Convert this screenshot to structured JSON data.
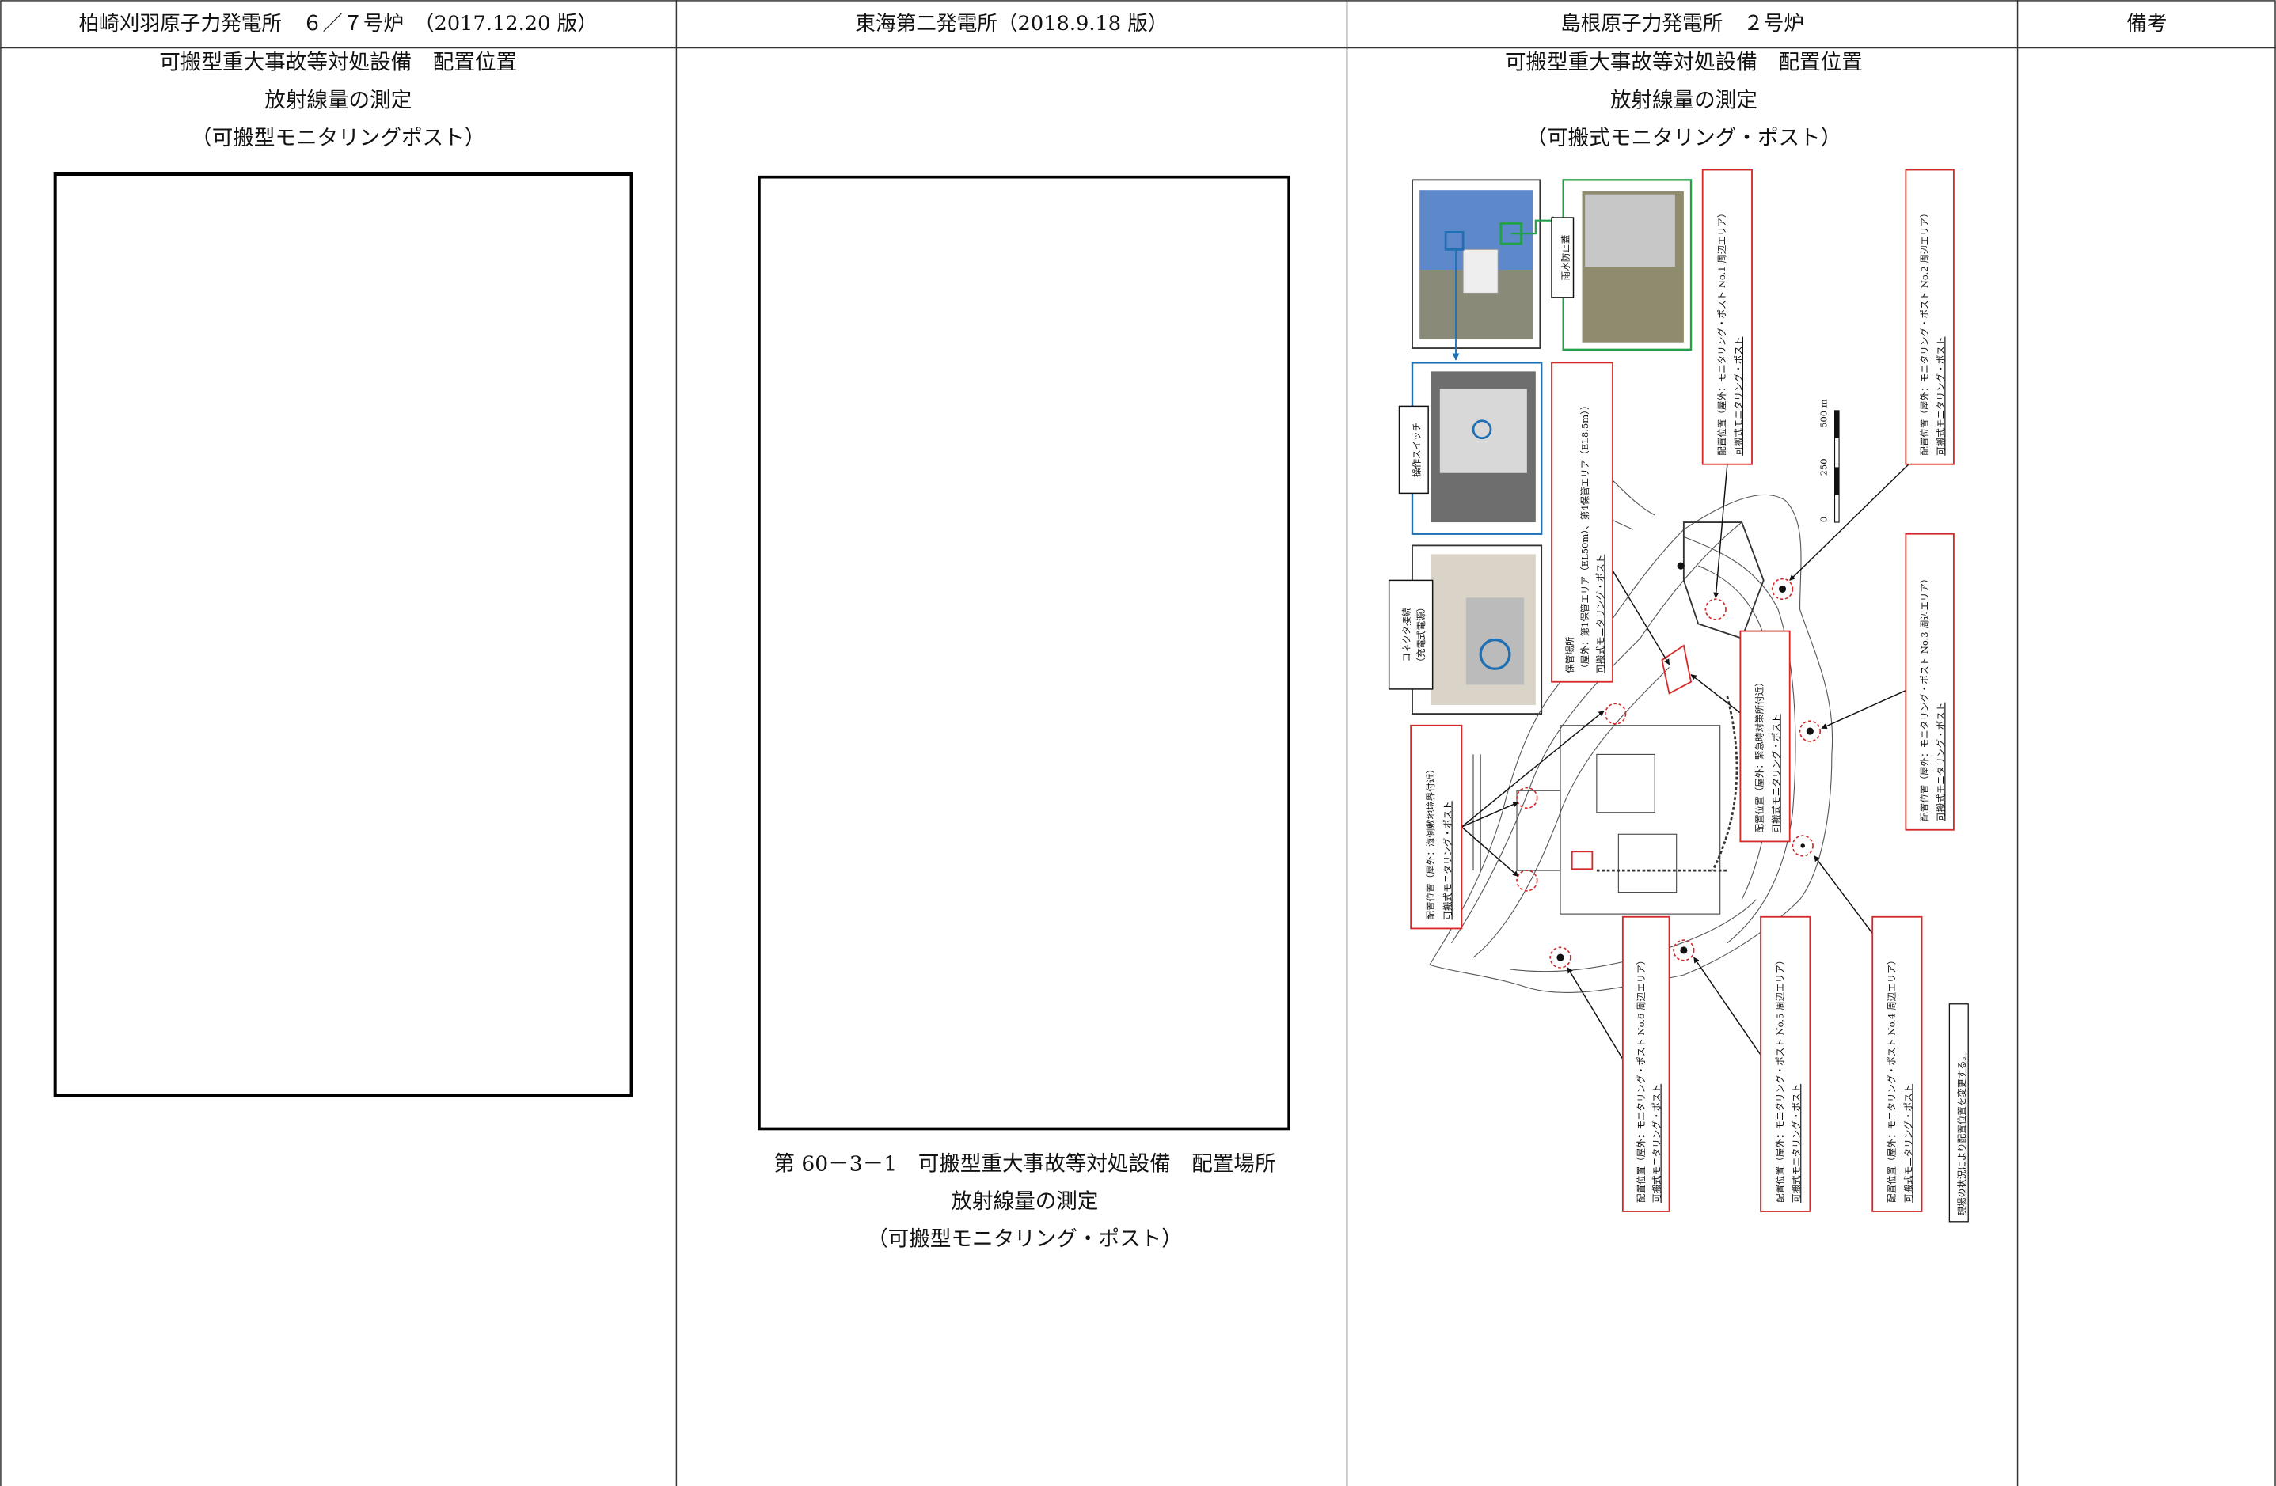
{
  "header": [
    "柏崎刈羽原子力発電所　６／７号炉　（2017.12.20 版）",
    "東海第二発電所（2018.9.18 版）",
    "島根原子力発電所　２号炉",
    "備考"
  ],
  "kashiwazaki": {
    "heading": [
      "可搬型重大事故等対処設備　配置位置",
      "放射線量の測定",
      "（可搬型モニタリングポスト）"
    ]
  },
  "tokai": {
    "caption": [
      "第 60－3－1　可搬型重大事故等対処設備　配置場所",
      "放射線量の測定",
      "（可搬型モニタリング・ポスト）"
    ]
  },
  "shimane": {
    "heading": [
      "可搬型重大事故等対処設備　配置位置",
      "放射線量の測定",
      "（可搬式モニタリング・ポスト）"
    ],
    "figure": {
      "photo_labels": [
        [
          "雨水防止蓋"
        ],
        [
          "操作スイッチ"
        ],
        [
          "コネクタ接続",
          "（充電式電源）"
        ]
      ],
      "callouts": [
        [
          "配置位置（屋外：モニタリング・ポスト No.1 周辺エリア）",
          "可搬式モニタリング・ポスト"
        ],
        [
          "配置位置（屋外：モニタリング・ポスト No.2 周辺エリア）",
          "可搬式モニタリング・ポスト"
        ],
        [
          "保管場所",
          "（屋外：第1保管エリア（EL50m）、第4保管エリア（EL8.5m））",
          "可搬式モニタリング・ポスト"
        ],
        [
          "配置位置（屋外：緊急時対策所付近）",
          "可搬式モニタリング・ポスト"
        ],
        [
          "配置位置（屋外：モニタリング・ポスト No.3 周辺エリア）",
          "可搬式モニタリング・ポスト"
        ],
        [
          "配置位置（屋外：海側敷地境界付近）",
          "可搬式モニタリング・ポスト"
        ],
        [
          "配置位置（屋外：モニタリング・ポスト No.6 周辺エリア）",
          "可搬式モニタリング・ポスト"
        ],
        [
          "配置位置（屋外：モニタリング・ポスト No.5 周辺エリア）",
          "可搬式モニタリング・ポスト"
        ],
        [
          "配置位置（屋外：モニタリング・ポスト No.4 周辺エリア）",
          "可搬式モニタリング・ポスト"
        ]
      ],
      "scale": [
        "0",
        "250",
        "500 m"
      ],
      "note": "現場の状況により配置位置を変更する。"
    }
  }
}
